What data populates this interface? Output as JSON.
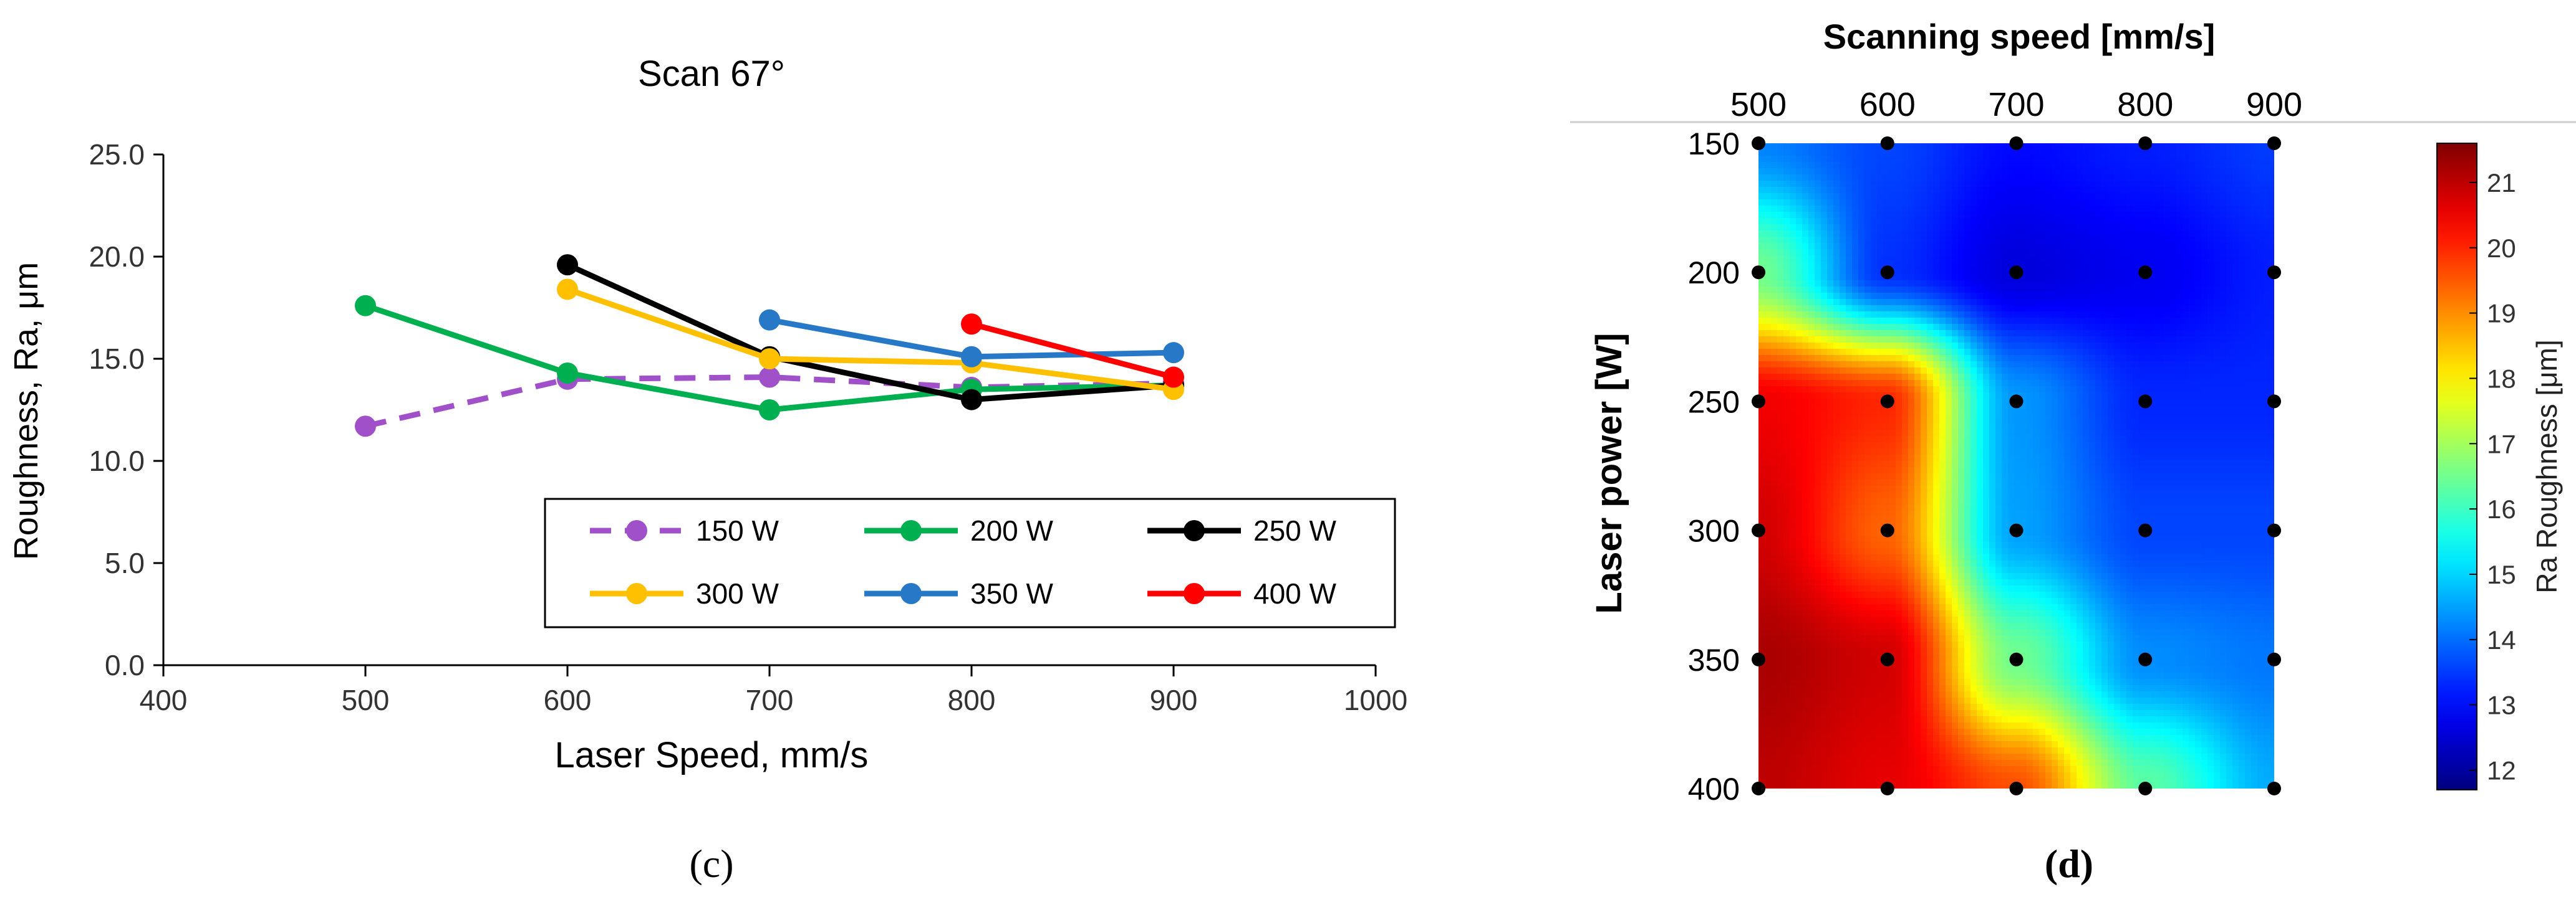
{
  "chart_data": [
    {
      "type": "line",
      "panel_label": "(c)",
      "title": "Scan 67°",
      "xlabel": "Laser Speed, mm/s",
      "ylabel": "Roughness, Ra, μm",
      "xlim": [
        400,
        1000
      ],
      "ylim": [
        0,
        25
      ],
      "xticks": [
        400,
        500,
        600,
        700,
        800,
        900,
        1000
      ],
      "yticks": [
        0,
        5,
        10,
        15,
        20,
        25
      ],
      "xtick_labels": [
        "400",
        "500",
        "600",
        "700",
        "800",
        "900",
        "1000"
      ],
      "ytick_labels": [
        "0.0",
        "5.0",
        "10.0",
        "15.0",
        "20.0",
        "25.0"
      ],
      "grid": false,
      "legend_position": "lower-right",
      "series": [
        {
          "name": "150 W",
          "color": "#a050c8",
          "dashed": true,
          "x": [
            500,
            600,
            700,
            800,
            900
          ],
          "y": [
            11.7,
            14.0,
            14.1,
            13.6,
            13.8
          ]
        },
        {
          "name": "200 W",
          "color": "#00b050",
          "dashed": false,
          "x": [
            500,
            600,
            700,
            800,
            900
          ],
          "y": [
            17.6,
            14.3,
            12.5,
            13.5,
            13.7
          ]
        },
        {
          "name": "250 W",
          "color": "#000000",
          "dashed": false,
          "x": [
            600,
            700,
            800,
            900
          ],
          "y": [
            19.6,
            15.1,
            13.0,
            13.7
          ]
        },
        {
          "name": "300 W",
          "color": "#ffc000",
          "dashed": false,
          "x": [
            600,
            700,
            800,
            900
          ],
          "y": [
            18.4,
            15.0,
            14.8,
            13.5
          ]
        },
        {
          "name": "350 W",
          "color": "#2878c8",
          "dashed": false,
          "x": [
            700,
            800,
            900
          ],
          "y": [
            16.9,
            15.1,
            15.3
          ]
        },
        {
          "name": "400 W",
          "color": "#ff0000",
          "dashed": false,
          "x": [
            800,
            900
          ],
          "y": [
            16.7,
            14.1
          ]
        }
      ]
    },
    {
      "type": "heatmap",
      "panel_label": "(d)",
      "title": "Scanning speed [mm/s]",
      "xlabel": "Scanning speed [mm/s]",
      "ylabel": "Laser power [W]",
      "x": [
        500,
        600,
        700,
        800,
        900
      ],
      "y": [
        150,
        200,
        250,
        300,
        350,
        400
      ],
      "x_axis_position": "top",
      "y_direction": "top-to-bottom",
      "z": [
        [
          14.2,
          13.6,
          13.0,
          13.2,
          13.5
        ],
        [
          16.5,
          13.4,
          12.6,
          12.8,
          13.2
        ],
        [
          20.5,
          20.0,
          14.4,
          13.3,
          13.3
        ],
        [
          20.8,
          19.4,
          14.5,
          13.6,
          13.6
        ],
        [
          21.2,
          20.8,
          16.5,
          14.3,
          14.1
        ],
        [
          21.0,
          20.6,
          19.6,
          16.3,
          14.6
        ]
      ],
      "colorbar": {
        "label": "Ra Roughness [μm]",
        "range": [
          11.7,
          21.6
        ],
        "ticks": [
          12,
          13,
          14,
          15,
          16,
          17,
          18,
          19,
          20,
          21
        ],
        "tick_labels": [
          "12",
          "13",
          "14",
          "15",
          "16",
          "17",
          "18",
          "19",
          "20",
          "21"
        ],
        "colormap": "jet"
      },
      "measurement_points": "all grid nodes"
    }
  ]
}
